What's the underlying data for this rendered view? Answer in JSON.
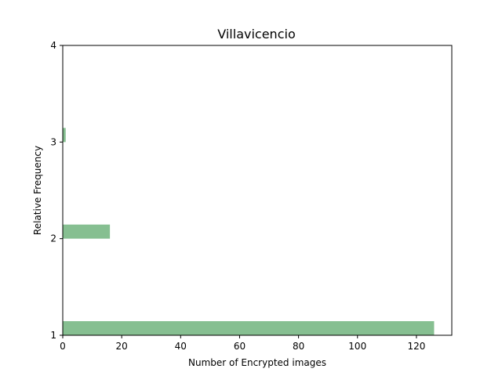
{
  "chart_data": {
    "type": "bar",
    "orientation": "horizontal",
    "title": "Villavicencio",
    "xlabel": "Number of Encrypted images",
    "ylabel": "Relative Frequency",
    "xlim": [
      0,
      132
    ],
    "ylim": [
      1,
      4
    ],
    "x_ticks": [
      "0",
      "20",
      "40",
      "60",
      "80",
      "100",
      "120"
    ],
    "y_ticks": [
      "1",
      "2",
      "3",
      "4"
    ],
    "bars": [
      {
        "category": 1,
        "value": 126
      },
      {
        "category": 2,
        "value": 16
      },
      {
        "category": 3,
        "value": 1
      },
      {
        "category": 4,
        "value": 1
      }
    ],
    "bar_color": "#86bf91",
    "grid": false,
    "legend": "none"
  }
}
